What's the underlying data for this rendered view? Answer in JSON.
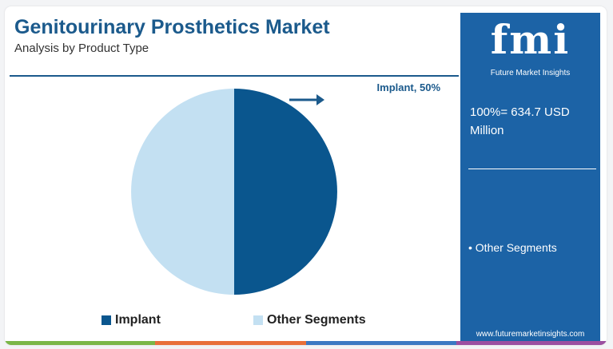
{
  "header": {
    "title": "Genitourinary Prosthetics Market",
    "subtitle": "Analysis by Product Type"
  },
  "side_panel": {
    "logo": "fmi",
    "logo_subtitle": "Future Market Insights",
    "total": "100%= 634.7 USD Million",
    "note": "• Other Segments",
    "website": "www.futuremarketinsights.com"
  },
  "legend": {
    "implant": "Implant",
    "other": "Other Segments"
  },
  "colors": {
    "implant": "#0a568e",
    "other": "#c3e0f2",
    "accent": "#1b5a8c",
    "panel": "#1c63a6",
    "bottom_bar": [
      "#7ab648",
      "#e8703a",
      "#3b78c2",
      "#9b4fa0"
    ]
  },
  "chart_data": {
    "type": "pie",
    "title": "Genitourinary Prosthetics Market",
    "subtitle": "Analysis by Product Type",
    "slices": [
      {
        "label": "Implant",
        "value": 50
      },
      {
        "label": "Other Segments",
        "value": 50
      }
    ],
    "annotation": "Implant, 50%",
    "legend_position": "bottom"
  }
}
